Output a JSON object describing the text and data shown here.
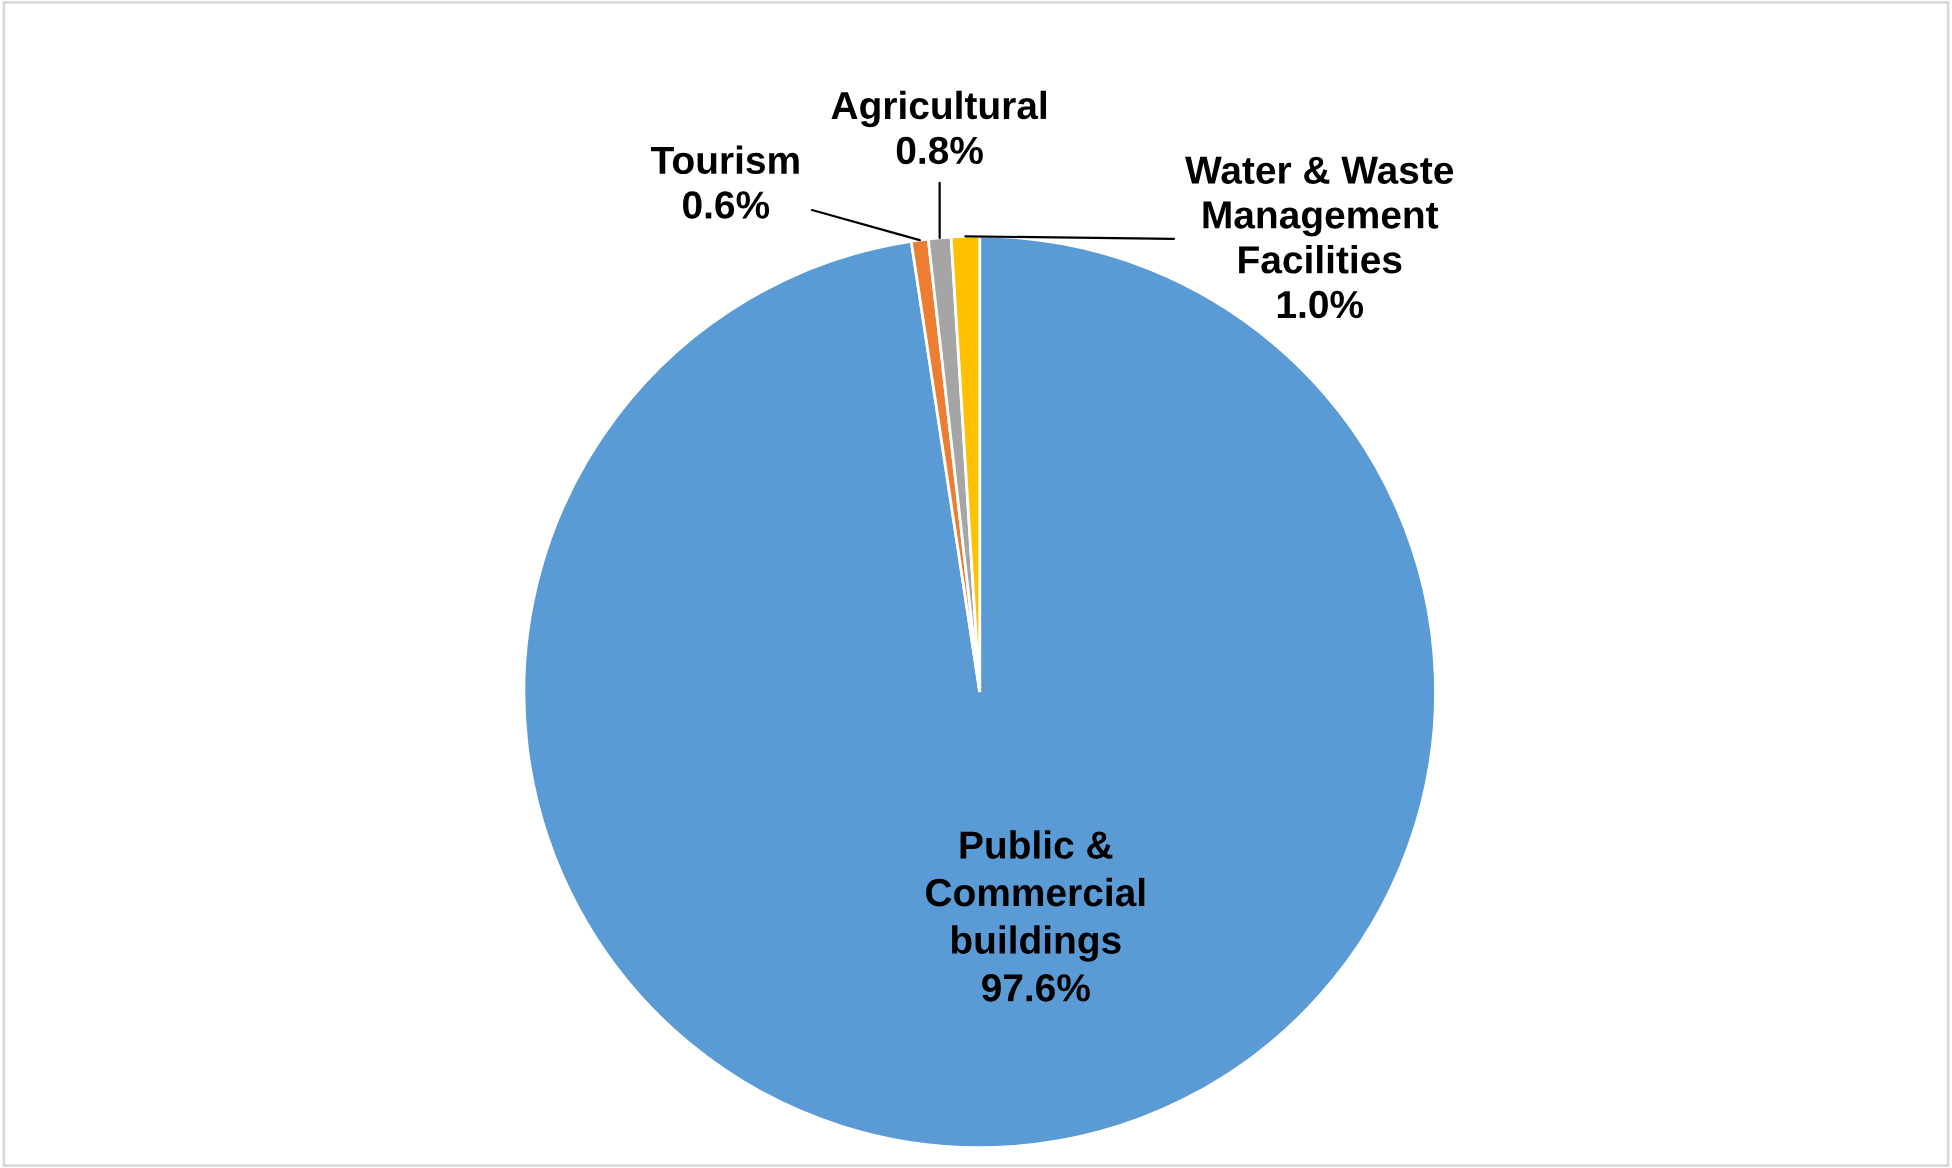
{
  "chart_data": {
    "type": "pie",
    "categories": [
      "Public & Commercial buildings",
      "Tourism",
      "Agricultural",
      "Water & Waste Management Facilities"
    ],
    "values": [
      97.6,
      0.6,
      0.8,
      1.0
    ],
    "value_labels": [
      "97.6%",
      "0.6%",
      "0.8%",
      "1.0%"
    ],
    "colors": [
      "#5b9bd5",
      "#ed7d31",
      "#a5a5a5",
      "#ffc000"
    ]
  }
}
